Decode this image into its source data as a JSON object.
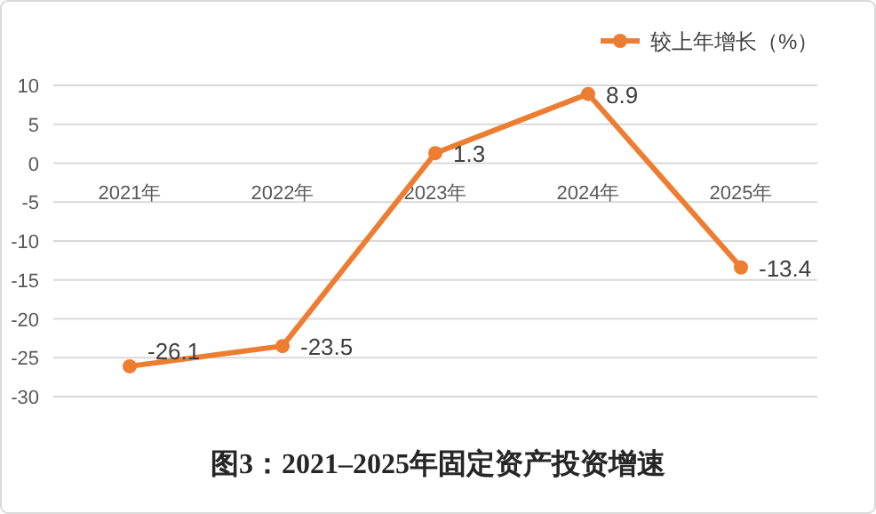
{
  "chart_data": {
    "type": "line",
    "title": "图3：2021–2025年固定资产投资增速",
    "categories": [
      "2021年",
      "2022年",
      "2023年",
      "2024年",
      "2025年"
    ],
    "series": [
      {
        "name": "较上年增长（%）",
        "color": "#ed7d31",
        "values": [
          -26.1,
          -23.5,
          1.3,
          8.9,
          -13.4
        ]
      }
    ],
    "ylim": [
      -30,
      10
    ],
    "yticks": [
      -30,
      -25,
      -20,
      -15,
      -10,
      -5,
      0,
      5,
      10
    ],
    "grid": "y",
    "legend": "top right",
    "marker": "circle",
    "line_style": "solid",
    "data_labels": true
  }
}
